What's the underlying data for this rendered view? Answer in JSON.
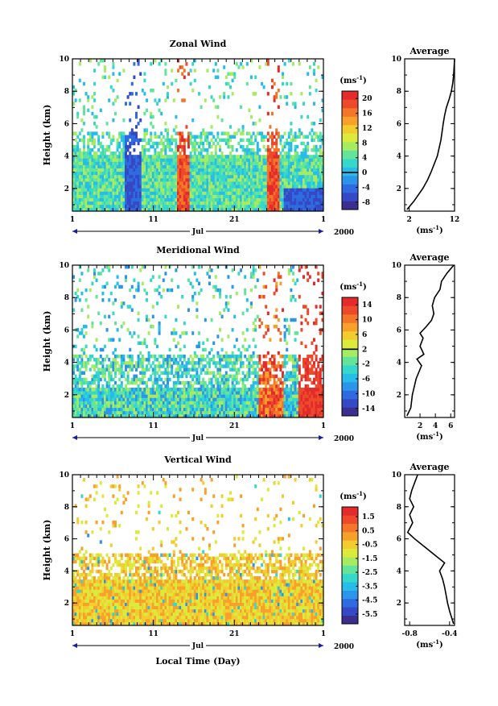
{
  "figure": {
    "xlabel": "Local Time (Day)"
  },
  "colormap": [
    "#3a2e8e",
    "#3548c6",
    "#2f6be0",
    "#2c95ea",
    "#28bde9",
    "#36d9c9",
    "#64e49a",
    "#a6eb60",
    "#dcea3b",
    "#f3cd2f",
    "#f7a12c",
    "#f4762a",
    "#ec4a2a",
    "#e32b2b"
  ],
  "chart_data": [
    {
      "type": "heatmap",
      "title": "Zonal Wind",
      "xlabel": "",
      "ylabel": "Height (km)",
      "x_ticks": [
        "1",
        "11",
        "21",
        "1"
      ],
      "month_label": "Jul",
      "year_label": "2000",
      "xlim_days": [
        1,
        32
      ],
      "ylim": [
        0.6,
        10
      ],
      "y_ticks": [
        2,
        4,
        6,
        8,
        10
      ],
      "colorbar": {
        "unit_base": "(ms",
        "unit_exp": "-1",
        "unit_close": ")",
        "ticks": [
          "-8",
          "-4",
          "0",
          "4",
          "8",
          "12",
          "16",
          "20"
        ],
        "range": [
          -10,
          22
        ],
        "zero_line": 0
      },
      "average": {
        "title": "Average",
        "xlim": [
          1,
          12
        ],
        "x_ticks": [
          "2",
          "12"
        ],
        "x_tick_values": [
          2,
          12
        ],
        "xlabel_base": "(ms",
        "xlabel_exp": "-1",
        "xlabel_close": ")",
        "ylim": [
          0.6,
          10
        ],
        "y_ticks": [
          2,
          4,
          6,
          8,
          10
        ],
        "profile_height": [
          0.7,
          1.2,
          2,
          2.5,
          3,
          4,
          5,
          6,
          6.5,
          7,
          7.5,
          8,
          8.5,
          9,
          9.5,
          10
        ],
        "profile_value": [
          1.5,
          3,
          5,
          6,
          6.8,
          8.2,
          9,
          9.5,
          9.8,
          10.2,
          10.8,
          11.3,
          11.6,
          11.8,
          11.9,
          12
        ]
      }
    },
    {
      "type": "heatmap",
      "title": "Meridional Wind",
      "xlabel": "",
      "ylabel": "Height (km)",
      "x_ticks": [
        "1",
        "11",
        "21",
        "1"
      ],
      "month_label": "Jul",
      "year_label": "2000",
      "xlim_days": [
        1,
        32
      ],
      "ylim": [
        0.6,
        10
      ],
      "y_ticks": [
        2,
        4,
        6,
        8,
        10
      ],
      "colorbar": {
        "unit_base": "(ms",
        "unit_exp": "-1",
        "unit_close": ")",
        "ticks": [
          "-14",
          "-10",
          "-6",
          "-2",
          "2",
          "6",
          "10",
          "14"
        ],
        "range": [
          -16,
          16
        ],
        "zero_line": 2
      },
      "average": {
        "title": "Average",
        "xlim": [
          0,
          6.5
        ],
        "x_ticks": [
          "2",
          "4",
          "6"
        ],
        "x_tick_values": [
          2,
          4,
          6
        ],
        "xlabel_base": "(ms",
        "xlabel_exp": "-1",
        "xlabel_close": ")",
        "ylim": [
          0.6,
          10
        ],
        "y_ticks": [
          2,
          4,
          6,
          8,
          10
        ],
        "profile_height": [
          0.7,
          1.2,
          2,
          3,
          3.8,
          4.2,
          4.5,
          5,
          5.5,
          5.8,
          6.2,
          6.6,
          7,
          7.5,
          8,
          8.5,
          9,
          9.5,
          10
        ],
        "profile_value": [
          0.3,
          0.8,
          1,
          1.5,
          2.2,
          1.6,
          2.5,
          2,
          2.4,
          2,
          2.8,
          3.5,
          3.8,
          3.6,
          3.9,
          4.6,
          4.8,
          5.5,
          6.4
        ]
      }
    },
    {
      "type": "heatmap",
      "title": "Vertical Wind",
      "xlabel": "Local Time (Day)",
      "ylabel": "Height (km)",
      "x_ticks": [
        "1",
        "11",
        "21",
        "1"
      ],
      "month_label": "Jul",
      "year_label": "2000",
      "xlim_days": [
        1,
        32
      ],
      "ylim": [
        0.6,
        10
      ],
      "y_ticks": [
        2,
        4,
        6,
        8,
        10
      ],
      "colorbar": {
        "unit_base": "(ms",
        "unit_exp": "-1",
        "unit_close": ")",
        "ticks": [
          "-5.5",
          "-4.5",
          "-3.5",
          "-2.5",
          "-1.5",
          "-0.5",
          "0.5",
          "1.5"
        ],
        "range": [
          -6.2,
          2.2
        ],
        "zero_line": null
      },
      "average": {
        "title": "Average",
        "xlim": [
          -0.85,
          -0.35
        ],
        "x_ticks": [
          "-0.8",
          "-0.4"
        ],
        "x_tick_values": [
          -0.8,
          -0.4
        ],
        "xlabel_base": "(ms",
        "xlabel_exp": "-1",
        "xlabel_close": ")",
        "ylim": [
          0.6,
          10
        ],
        "y_ticks": [
          2,
          4,
          6,
          8,
          10
        ],
        "profile_height": [
          0.7,
          1.5,
          2,
          3,
          3.5,
          4,
          4.5,
          5,
          5.5,
          6,
          6.4,
          7,
          7.5,
          8,
          8.5,
          9,
          10
        ],
        "profile_value": [
          -0.36,
          -0.4,
          -0.42,
          -0.45,
          -0.47,
          -0.5,
          -0.45,
          -0.55,
          -0.65,
          -0.75,
          -0.82,
          -0.77,
          -0.8,
          -0.76,
          -0.8,
          -0.78,
          -0.72
        ]
      }
    }
  ]
}
